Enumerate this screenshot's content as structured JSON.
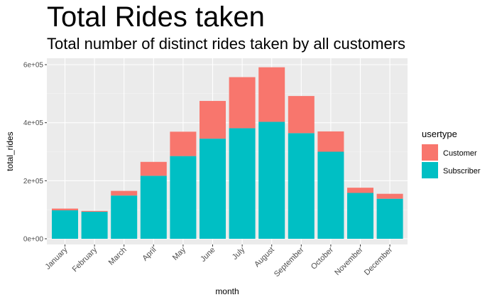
{
  "chart_data": {
    "type": "bar",
    "stacked": true,
    "title": "Total Rides taken",
    "subtitle": "Total number of distinct rides taken by all customers",
    "xlabel": "month",
    "ylabel": "total_rides",
    "ylim": [
      0,
      620000
    ],
    "yticks": [
      0,
      200000,
      400000,
      600000
    ],
    "ytick_labels": [
      "0e+00",
      "2e+05",
      "4e+05",
      "6e+05"
    ],
    "categories": [
      "January",
      "February",
      "March",
      "April",
      "May",
      "June",
      "July",
      "August",
      "September",
      "October",
      "November",
      "December"
    ],
    "series": [
      {
        "name": "Subscriber",
        "color": "#00BFC4",
        "values": [
          98000,
          93000,
          149000,
          217000,
          285000,
          345000,
          381000,
          403000,
          364000,
          300000,
          158000,
          138000
        ]
      },
      {
        "name": "Customer",
        "color": "#F8766D",
        "values": [
          6000,
          3000,
          16000,
          48000,
          84000,
          130000,
          176000,
          188000,
          128000,
          70000,
          18000,
          17000
        ]
      }
    ],
    "legend": {
      "title": "usertype",
      "position": "right",
      "entries": [
        "Customer",
        "Subscriber"
      ]
    }
  }
}
